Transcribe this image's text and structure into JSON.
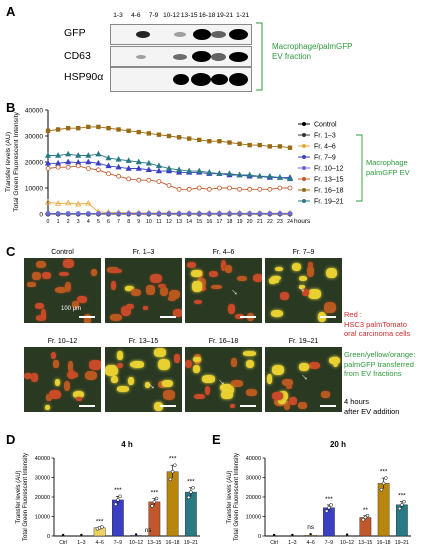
{
  "panel_labels": {
    "a": "A",
    "b": "B",
    "c": "C",
    "d": "D",
    "e": "E"
  },
  "panelA": {
    "lanes": [
      "1-3",
      "4-6",
      "7-9",
      "10-12",
      "13-15",
      "16-18",
      "19-21",
      "1-21"
    ],
    "rows": [
      "GFP",
      "CD63",
      "HSP90α"
    ],
    "bracket_label_1": "Macrophage/palmGFP",
    "bracket_label_2": "EV fraction"
  },
  "panelB_legend": {
    "items": [
      "Control",
      "Fr. 1–3",
      "Fr. 4–6",
      "Fr. 7–9",
      "Fr. 10–12",
      "Fr. 13–15",
      "Fr. 16–18",
      "Fr. 19–21"
    ],
    "bracket_label_1": "Macrophage",
    "bracket_label_2": "palmGFP EV"
  },
  "panelC": {
    "titles": [
      "Control",
      "Fr. 1–3",
      "Fr. 4–6",
      "Fr. 7–9",
      "Fr. 10–12",
      "Fr. 13–15",
      "Fr. 16–18",
      "Fr. 19–21"
    ],
    "scale_bar": "100 μm",
    "red_title": "Red :",
    "red_desc_1": "HSC3 palmTomato",
    "red_desc_2": "oral carcinoma cells",
    "green_title": "Green/yellow/orange:",
    "green_desc_1": "palmGFP transferred",
    "green_desc_2": "from EV fractions",
    "time_1": "4 hours",
    "time_2": "after EV addition"
  },
  "chart_data": [
    {
      "type": "line",
      "panel": "B",
      "xlabel": "hours",
      "ylabel_1": "Transfer levels (AU)",
      "ylabel_2": "Total Green Fluorescent Intensity",
      "x": [
        0,
        1,
        2,
        3,
        4,
        5,
        6,
        7,
        8,
        9,
        10,
        11,
        12,
        13,
        14,
        15,
        16,
        17,
        18,
        19,
        20,
        21,
        22,
        23,
        24
      ],
      "ylim": [
        0,
        40000
      ],
      "yticks": [
        "0",
        "10000",
        "20000",
        "30000",
        "40000"
      ],
      "series": [
        {
          "name": "Control",
          "color": "#000000",
          "values": [
            0,
            0,
            0,
            0,
            0,
            0,
            0,
            0,
            0,
            0,
            0,
            0,
            0,
            0,
            0,
            0,
            0,
            0,
            0,
            0,
            0,
            0,
            0,
            0,
            0
          ]
        },
        {
          "name": "Fr. 1–3",
          "color": "#333333",
          "values": [
            0,
            0,
            0,
            0,
            0,
            0,
            0,
            0,
            0,
            0,
            0,
            0,
            0,
            0,
            0,
            0,
            0,
            0,
            0,
            0,
            0,
            0,
            0,
            0,
            0
          ]
        },
        {
          "name": "Fr. 4–6",
          "color": "#e8a838",
          "values": [
            4500,
            4000,
            4200,
            3800,
            4100,
            800,
            600,
            500,
            500,
            400,
            400,
            400,
            400,
            300,
            300,
            300,
            300,
            300,
            300,
            300,
            300,
            300,
            300,
            300,
            300
          ]
        },
        {
          "name": "Fr. 7–9",
          "color": "#3a3fc4",
          "values": [
            19500,
            19500,
            20000,
            19800,
            20000,
            19500,
            18500,
            18000,
            17500,
            17500,
            17000,
            16500,
            16500,
            16000,
            16000,
            16000,
            15500,
            15500,
            15000,
            15000,
            14500,
            14500,
            14000,
            14000,
            14000
          ]
        },
        {
          "name": "Fr. 10–12",
          "color": "#6a6ad8",
          "values": [
            200,
            200,
            200,
            200,
            200,
            200,
            200,
            200,
            200,
            200,
            200,
            200,
            200,
            200,
            200,
            200,
            200,
            200,
            200,
            200,
            200,
            200,
            200,
            200,
            200
          ]
        },
        {
          "name": "Fr. 13–15",
          "color": "#c0582c",
          "values": [
            17500,
            18000,
            18000,
            18500,
            17500,
            17000,
            15500,
            14500,
            13500,
            13000,
            13000,
            12500,
            11000,
            9500,
            9500,
            10000,
            9500,
            10000,
            10000,
            9500,
            9500,
            9500,
            9500,
            10000,
            10000
          ]
        },
        {
          "name": "Fr. 16–18",
          "color": "#9a6a10",
          "values": [
            32000,
            32500,
            33000,
            33000,
            33500,
            33500,
            33000,
            32500,
            32000,
            31500,
            31000,
            30500,
            30000,
            29500,
            29000,
            28500,
            28000,
            28000,
            27500,
            27000,
            26500,
            26500,
            26000,
            26000,
            25500
          ]
        },
        {
          "name": "Fr. 19–21",
          "color": "#2a7a86",
          "values": [
            22500,
            22500,
            23000,
            22500,
            22500,
            23000,
            21500,
            21000,
            20500,
            20000,
            19500,
            18500,
            17500,
            17000,
            16500,
            16500,
            16000,
            15500,
            15500,
            15000,
            15000,
            14500,
            14500,
            14000,
            13500
          ]
        }
      ]
    },
    {
      "type": "bar",
      "panel": "D",
      "title": "4 h",
      "ylabel_1": "Transfer levels (AU)",
      "ylabel_2": "Total Green Fluorescent Intensity",
      "categories": [
        "Ctrl",
        "1–3",
        "4–6",
        "7–9",
        "10–12",
        "13–15",
        "16–18",
        "19–21"
      ],
      "values": [
        0,
        0,
        4200,
        18500,
        300,
        17500,
        33000,
        22500
      ],
      "significance": [
        "",
        "",
        "***",
        "***",
        "",
        "***",
        "***",
        "***"
      ],
      "colors": [
        "#000000",
        "#555555",
        "#f0d060",
        "#3a3fc4",
        "#6a6ad8",
        "#c0582c",
        "#b8860b",
        "#2a7a86"
      ],
      "ylim": [
        0,
        40000
      ],
      "yticks": [
        "0",
        "10000",
        "20000",
        "30000",
        "40000"
      ]
    },
    {
      "type": "bar",
      "panel": "E",
      "title": "20 h",
      "ylabel_1": "Transfer levels (AU)",
      "ylabel_2": "Total Green Fluorescent Intensity",
      "categories": [
        "Ctrl",
        "1–3",
        "4–6",
        "7–9",
        "10–12",
        "13–15",
        "16–18",
        "19–21"
      ],
      "values": [
        0,
        0,
        400,
        14500,
        200,
        9500,
        27000,
        16000
      ],
      "significance": [
        "",
        "",
        "ns",
        "***",
        "",
        "**",
        "***",
        "***"
      ],
      "colors": [
        "#000000",
        "#555555",
        "#f0d060",
        "#3a3fc4",
        "#6a6ad8",
        "#c0582c",
        "#b8860b",
        "#2a7a86"
      ],
      "ylim": [
        0,
        40000
      ],
      "yticks": [
        "0",
        "10000",
        "20000",
        "30000",
        "40000"
      ]
    }
  ],
  "panelD_ns": "ns"
}
